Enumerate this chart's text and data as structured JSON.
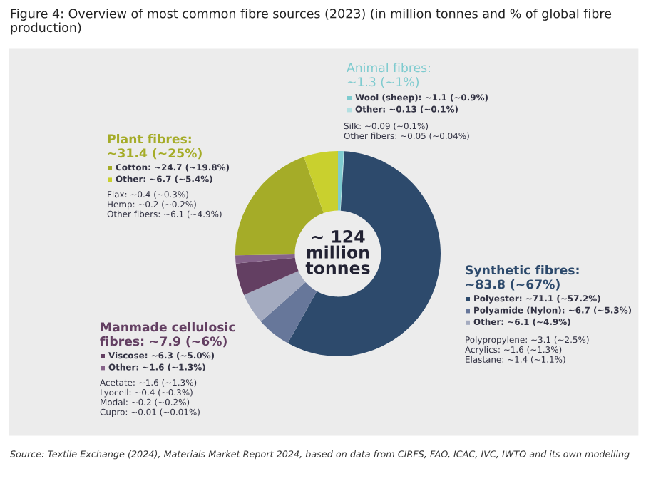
{
  "chart_data": {
    "type": "donut",
    "title": "Figure 4: Overview of most common fibre sources (2023) (in million tonnes and % of global fibre production)",
    "categories": [
      "Wool (sheep)",
      "Other",
      "Polyester",
      "Polyamide (Nylon)",
      "Other",
      "Viscose",
      "Other",
      "Cotton",
      "Other"
    ],
    "values": [
      1.1,
      0.13,
      71.1,
      6.7,
      6.1,
      6.3,
      1.6,
      24.7,
      6.7
    ],
    "value_labels": [
      "~1.1 (~0.9%)",
      "~0.13 (~0.1%)",
      "~71.1 (~57.2%)",
      "~6.7 (~5.3%)",
      "~6.1 (~4.9%)",
      "~6.3 (~5.0%)",
      "~1.6 (~1.3%)",
      "~24.7 (~19.8%)",
      "~6.7 (~5.4%)"
    ],
    "legend": "right",
    "colors": [
      "#7ecbcf",
      "#b3e0e2",
      "#2d4a6c",
      "#67779a",
      "#a4abc0",
      "#633f62",
      "#86638a",
      "#a5ac28",
      "#c9d02e"
    ],
    "annotations": [
      "Animal fibres:\n~1.3 (~1%)",
      "Silk: ~0.09 (~0.1%)\nOther fibers: ~0.05 (~0.04%)",
      "Synthetic fibres:\n~83.8 (~67%)",
      "Polypropylene: ~3.1 (~2.5%)\nAcrylics: ~1.6 (~1.3%)\nElastane: ~1.4 (~1.1%)",
      "Manmade cellulosic\nfibres: ~7.9 (~6%)",
      "Acetate: ~1.6 (~1.3%)\nLyocell: ~0.4 (~0.3%)\nModal: ~0.2 (~0.2%)\nCupro: ~0.01 (~0.01%)",
      "Plant fibres:\n~31.4 (~25%)",
      "Flax: ~0.4 (~0.3%)\nHemp: ~0.2 (~0.2%)\nOther fibers: ~6.1 (~4.9%)",
      "~ 124\nmillion\ntonnes",
      "Source: Textile Exchange (2024), Materials Market Report 2024, based on data from CIRFS, FAO, ICAC, IVC, IWTO and its own modelling"
    ]
  }
}
